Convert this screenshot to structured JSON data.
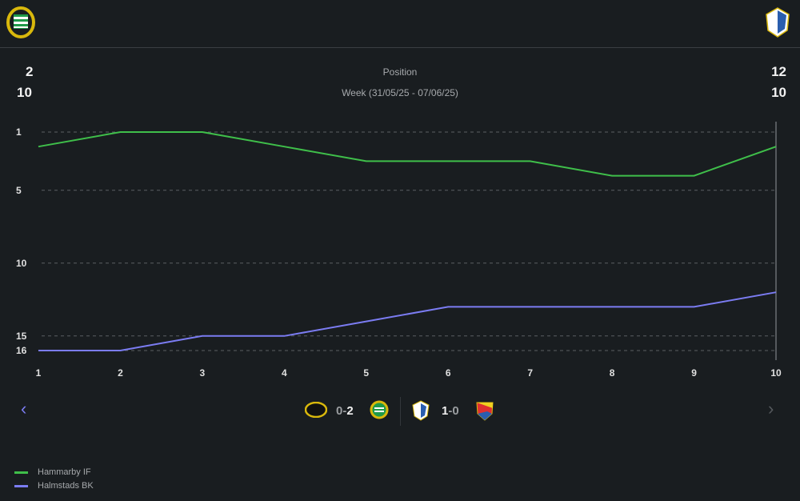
{
  "header": {
    "home_logo": "hammarby-crest-icon",
    "away_logo": "halmstad-crest-icon"
  },
  "summary": {
    "home_position": "2",
    "home_week": "10",
    "away_position": "12",
    "away_week": "10",
    "title": "Position",
    "subtitle": "Week (31/05/25 - 07/06/25)"
  },
  "matches": [
    {
      "home_logo": "aik-crest-icon",
      "home_score": "0",
      "away_score": "2",
      "away_logo": "hammarby-crest-icon"
    },
    {
      "home_logo": "halmstad-crest-icon",
      "home_score": "1",
      "away_score": "0",
      "away_logo": "djurgarden-crest-icon"
    }
  ],
  "chart_data": {
    "type": "line",
    "title": "Position",
    "x": [
      1,
      2,
      3,
      4,
      5,
      6,
      7,
      8,
      9,
      10
    ],
    "x_tick_labels": [
      "1",
      "2",
      "3",
      "4",
      "5",
      "6",
      "7",
      "8",
      "9",
      "10"
    ],
    "y_ticks": [
      1,
      5,
      10,
      15,
      16
    ],
    "y_tick_labels": [
      "1",
      "5",
      "10",
      "15",
      "16"
    ],
    "ylim": [
      1,
      16
    ],
    "y_inverted": true,
    "grid": true,
    "legend_placement": "bottom-left",
    "series": [
      {
        "name": "Hammarby IF",
        "color": "#3fbf4a",
        "values": [
          2,
          1,
          1,
          2,
          3,
          3,
          3,
          4,
          4,
          2
        ]
      },
      {
        "name": "Halmstads BK",
        "color": "#7b7cf2",
        "values": [
          16,
          16,
          15,
          15,
          14,
          13,
          13,
          13,
          13,
          12
        ]
      }
    ]
  }
}
